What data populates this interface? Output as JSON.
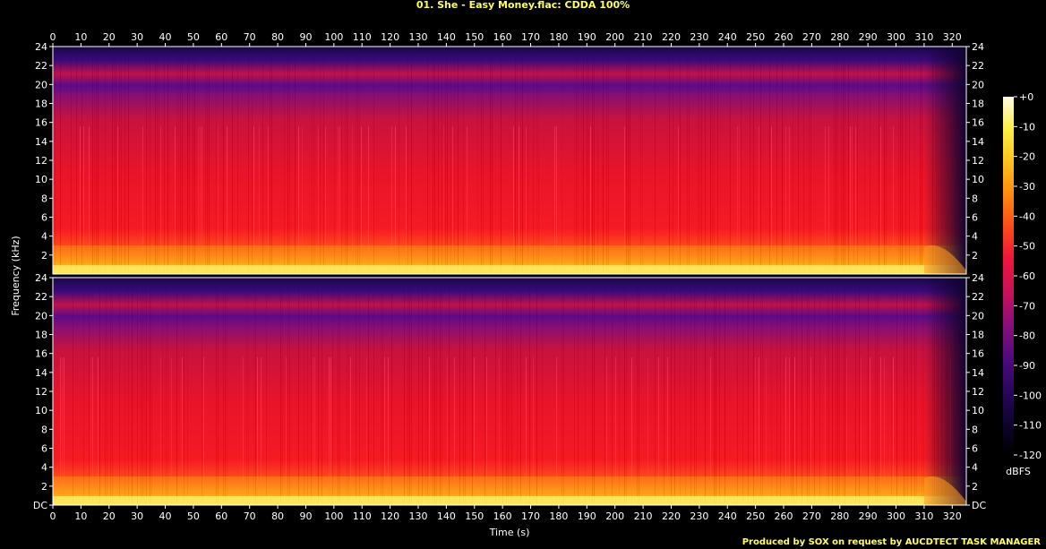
{
  "title": "01. She - Easy Money.flac: CDDA 100%",
  "footer": "Produced by SOX on request by AUCDTECT TASK MANAGER",
  "colors": {
    "background": "#000000",
    "title": "#ffff55",
    "axis_text": "#ffffff",
    "scale": [
      "#fffbe6",
      "#ffef44",
      "#ffc21a",
      "#ff8a0f",
      "#ff4a1c",
      "#f0143a",
      "#c8125a",
      "#8a0f7a",
      "#520a80",
      "#2a0660",
      "#100330",
      "#000000"
    ]
  },
  "chart_data": {
    "type": "heatmap",
    "xlabel": "Time (s)",
    "ylabel": "Frequency (kHz)",
    "xlim": [
      0,
      325
    ],
    "xticks": [
      "0",
      "10",
      "20",
      "30",
      "40",
      "50",
      "60",
      "70",
      "80",
      "90",
      "100",
      "110",
      "120",
      "130",
      "140",
      "150",
      "160",
      "170",
      "180",
      "190",
      "200",
      "210",
      "220",
      "230",
      "240",
      "250",
      "260",
      "270",
      "280",
      "290",
      "300",
      "310",
      "320"
    ],
    "channels": [
      {
        "ylim": [
          0,
          24
        ],
        "yticks": [
          "2",
          "4",
          "6",
          "8",
          "10",
          "12",
          "14",
          "16",
          "18",
          "20",
          "22",
          "24"
        ]
      },
      {
        "ylim": [
          0,
          24
        ],
        "yticks": [
          "DC",
          "2",
          "4",
          "6",
          "8",
          "10",
          "12",
          "14",
          "16",
          "18",
          "20",
          "22",
          "24"
        ]
      }
    ],
    "colorbar": {
      "label": "dBFS",
      "range": [
        -120,
        0
      ],
      "ticks": [
        "+0",
        "-10",
        "-20",
        "-30",
        "-40",
        "-50",
        "-60",
        "-70",
        "-80",
        "-90",
        "-100",
        "-110",
        "-120"
      ]
    },
    "fade_out_start_s": 310,
    "end_s": 325
  }
}
